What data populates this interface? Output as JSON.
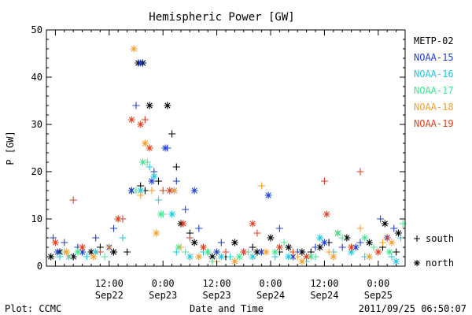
{
  "colors": {
    "METP-02": "#000000",
    "NOAA-15": "#1f3fd0",
    "NOAA-16": "#20c8e0",
    "NOAA-17": "#40e890",
    "NOAA-18": "#f0a030",
    "NOAA-19": "#e04020"
  },
  "chart_data": {
    "type": "scatter",
    "title": "Hemispheric Power [GW]",
    "xlabel": "Date and Time",
    "ylabel": "P [GW]",
    "xlim": [
      "2011-09-21 22:00",
      "2011-09-25 06:00"
    ],
    "ylim": [
      0,
      50
    ],
    "y_ticks": [
      0,
      10,
      20,
      30,
      40,
      50
    ],
    "x_ticks": [
      {
        "x": "2011-09-22 12:00",
        "time": "12:00",
        "date": "Sep22"
      },
      {
        "x": "2011-09-23 00:00",
        "time": "0:00",
        "date": "Sep23"
      },
      {
        "x": "2011-09-23 12:00",
        "time": "12:00",
        "date": "Sep23"
      },
      {
        "x": "2011-09-24 00:00",
        "time": "0:00",
        "date": "Sep24"
      },
      {
        "x": "2011-09-24 12:00",
        "time": "12:00",
        "date": "Sep24"
      },
      {
        "x": "2011-09-25 00:00",
        "time": "0:00",
        "date": "Sep25"
      }
    ],
    "legend": {
      "placement": "right",
      "entries": [
        "METP-02",
        "NOAA-15",
        "NOAA-16",
        "NOAA-17",
        "NOAA-18",
        "NOAA-19"
      ],
      "markers": [
        {
          "symbol": "+",
          "label": "south"
        },
        {
          "symbol": "*",
          "label": "north"
        }
      ]
    },
    "series": [
      {
        "name": "METP-02",
        "south": [
          [
            "2011-09-22 06:00",
            3
          ],
          [
            "2011-09-22 10:00",
            4
          ],
          [
            "2011-09-22 16:00",
            3
          ],
          [
            "2011-09-22 19:00",
            17
          ],
          [
            "2011-09-22 20:00",
            16
          ],
          [
            "2011-09-22 23:00",
            18
          ],
          [
            "2011-09-23 02:00",
            28
          ],
          [
            "2011-09-23 03:00",
            21
          ],
          [
            "2011-09-23 06:00",
            7
          ],
          [
            "2011-09-23 10:00",
            3
          ],
          [
            "2011-09-23 14:00",
            2
          ],
          [
            "2011-09-23 20:00",
            4
          ],
          [
            "2011-09-24 02:00",
            3
          ],
          [
            "2011-09-24 09:00",
            3
          ],
          [
            "2011-09-24 13:00",
            5
          ],
          [
            "2011-09-24 18:00",
            4
          ],
          [
            "2011-09-25 01:00",
            4
          ],
          [
            "2011-09-25 04:00",
            3
          ]
        ],
        "north": [
          [
            "2011-09-21 23:00",
            2
          ],
          [
            "2011-09-22 01:00",
            3
          ],
          [
            "2011-09-22 04:00",
            2
          ],
          [
            "2011-09-22 08:00",
            3
          ],
          [
            "2011-09-22 13:00",
            3
          ],
          [
            "2011-09-22 17:00",
            16
          ],
          [
            "2011-09-22 18:30",
            43
          ],
          [
            "2011-09-22 19:30",
            43
          ],
          [
            "2011-09-22 21:00",
            34
          ],
          [
            "2011-09-23 01:00",
            34
          ],
          [
            "2011-09-23 04:00",
            9
          ],
          [
            "2011-09-23 07:00",
            5
          ],
          [
            "2011-09-23 11:00",
            2
          ],
          [
            "2011-09-23 16:00",
            5
          ],
          [
            "2011-09-23 21:00",
            3
          ],
          [
            "2011-09-24 00:00",
            6
          ],
          [
            "2011-09-24 04:00",
            4
          ],
          [
            "2011-09-24 07:00",
            3
          ],
          [
            "2011-09-24 11:00",
            4
          ],
          [
            "2011-09-24 15:00",
            7
          ],
          [
            "2011-09-24 17:00",
            6
          ],
          [
            "2011-09-24 22:00",
            5
          ],
          [
            "2011-09-25 01:30",
            9
          ],
          [
            "2011-09-25 04:30",
            7
          ]
        ]
      },
      {
        "name": "NOAA-15",
        "south": [
          [
            "2011-09-21 23:30",
            6
          ],
          [
            "2011-09-22 02:00",
            5
          ],
          [
            "2011-09-22 05:00",
            4
          ],
          [
            "2011-09-22 09:00",
            6
          ],
          [
            "2011-09-22 13:00",
            8
          ],
          [
            "2011-09-22 18:00",
            34
          ],
          [
            "2011-09-22 20:00",
            31
          ],
          [
            "2011-09-22 22:00",
            20
          ],
          [
            "2011-09-23 01:00",
            25
          ],
          [
            "2011-09-23 03:00",
            18
          ],
          [
            "2011-09-23 05:00",
            12
          ],
          [
            "2011-09-23 08:00",
            8
          ],
          [
            "2011-09-23 13:00",
            5
          ],
          [
            "2011-09-23 18:00",
            3
          ],
          [
            "2011-09-24 02:00",
            8
          ],
          [
            "2011-09-24 06:00",
            3
          ],
          [
            "2011-09-24 10:00",
            4
          ],
          [
            "2011-09-24 16:00",
            4
          ],
          [
            "2011-09-24 20:00",
            5
          ],
          [
            "2011-09-25 00:30",
            10
          ],
          [
            "2011-09-25 03:30",
            8
          ]
        ],
        "north": [
          [
            "2011-09-22 00:30",
            3
          ],
          [
            "2011-09-22 06:00",
            3
          ],
          [
            "2011-09-22 12:00",
            4
          ],
          [
            "2011-09-22 17:00",
            16
          ],
          [
            "2011-09-22 19:00",
            43
          ],
          [
            "2011-09-22 21:30",
            18
          ],
          [
            "2011-09-23 00:30",
            25
          ],
          [
            "2011-09-23 02:30",
            16
          ],
          [
            "2011-09-23 07:00",
            16
          ],
          [
            "2011-09-23 12:00",
            3
          ],
          [
            "2011-09-23 22:00",
            3
          ],
          [
            "2011-09-23 23:30",
            15
          ],
          [
            "2011-09-24 05:00",
            2
          ],
          [
            "2011-09-24 12:00",
            5
          ],
          [
            "2011-09-24 19:00",
            4
          ],
          [
            "2011-09-25 02:00",
            6
          ]
        ]
      },
      {
        "name": "NOAA-16",
        "south": [
          [
            "2011-09-22 01:00",
            2
          ],
          [
            "2011-09-22 07:00",
            2
          ],
          [
            "2011-09-22 15:00",
            6
          ],
          [
            "2011-09-22 21:00",
            21
          ],
          [
            "2011-09-22 23:00",
            14
          ],
          [
            "2011-09-23 03:00",
            3
          ],
          [
            "2011-09-23 09:00",
            3
          ],
          [
            "2011-09-23 15:00",
            2
          ],
          [
            "2011-09-24 01:00",
            2
          ],
          [
            "2011-09-24 08:00",
            1
          ],
          [
            "2011-09-24 14:00",
            3
          ],
          [
            "2011-09-24 21:00",
            2
          ],
          [
            "2011-09-25 03:00",
            2
          ],
          [
            "2011-09-25 05:00",
            6
          ]
        ],
        "north": [
          [
            "2011-09-22 03:00",
            2
          ],
          [
            "2011-09-22 09:00",
            3
          ],
          [
            "2011-09-22 19:00",
            16
          ],
          [
            "2011-09-22 22:00",
            19
          ],
          [
            "2011-09-23 02:00",
            11
          ],
          [
            "2011-09-23 06:00",
            2
          ],
          [
            "2011-09-23 13:00",
            2
          ],
          [
            "2011-09-23 20:00",
            2
          ],
          [
            "2011-09-24 04:00",
            2
          ],
          [
            "2011-09-24 11:00",
            6
          ],
          [
            "2011-09-24 18:00",
            3
          ],
          [
            "2011-09-25 04:00",
            1
          ]
        ]
      },
      {
        "name": "NOAA-17",
        "south": [
          [
            "2011-09-22 02:00",
            3
          ],
          [
            "2011-09-22 11:00",
            2
          ],
          [
            "2011-09-22 18:00",
            16
          ],
          [
            "2011-09-22 20:30",
            22
          ],
          [
            "2011-09-23 00:00",
            11
          ],
          [
            "2011-09-23 05:00",
            3
          ],
          [
            "2011-09-23 11:00",
            1
          ],
          [
            "2011-09-23 19:00",
            3
          ],
          [
            "2011-09-24 03:00",
            5
          ],
          [
            "2011-09-24 10:00",
            2
          ],
          [
            "2011-09-24 16:00",
            6
          ],
          [
            "2011-09-24 23:00",
            4
          ],
          [
            "2011-09-25 05:30",
            9
          ]
        ],
        "north": [
          [
            "2011-09-22 05:00",
            3
          ],
          [
            "2011-09-22 14:00",
            10
          ],
          [
            "2011-09-22 19:30",
            22
          ],
          [
            "2011-09-22 23:30",
            11
          ],
          [
            "2011-09-23 03:30",
            4
          ],
          [
            "2011-09-23 10:00",
            3
          ],
          [
            "2011-09-23 17:00",
            2
          ],
          [
            "2011-09-24 01:00",
            3
          ],
          [
            "2011-09-24 09:00",
            2
          ],
          [
            "2011-09-24 15:00",
            7
          ],
          [
            "2011-09-24 21:00",
            6
          ],
          [
            "2011-09-25 02:30",
            3
          ]
        ]
      },
      {
        "name": "NOAA-18",
        "south": [
          [
            "2011-09-22 03:00",
            2
          ],
          [
            "2011-09-22 12:00",
            4
          ],
          [
            "2011-09-22 19:00",
            15
          ],
          [
            "2011-09-22 21:30",
            16
          ],
          [
            "2011-09-23 04:00",
            4
          ],
          [
            "2011-09-23 12:00",
            1
          ],
          [
            "2011-09-23 22:00",
            17
          ],
          [
            "2011-09-24 06:00",
            2
          ],
          [
            "2011-09-24 13:00",
            3
          ],
          [
            "2011-09-24 20:00",
            8
          ],
          [
            "2011-09-25 01:00",
            5
          ]
        ],
        "north": [
          [
            "2011-09-22 02:30",
            3
          ],
          [
            "2011-09-22 08:30",
            2
          ],
          [
            "2011-09-22 17:30",
            46
          ],
          [
            "2011-09-22 20:00",
            26
          ],
          [
            "2011-09-22 22:30",
            7
          ],
          [
            "2011-09-23 02:30",
            16
          ],
          [
            "2011-09-23 08:00",
            2
          ],
          [
            "2011-09-23 16:00",
            1
          ],
          [
            "2011-09-23 23:00",
            3
          ],
          [
            "2011-09-24 07:00",
            1
          ],
          [
            "2011-09-24 14:00",
            2
          ],
          [
            "2011-09-24 22:00",
            2
          ],
          [
            "2011-09-25 03:00",
            5
          ]
        ]
      },
      {
        "name": "NOAA-19",
        "south": [
          [
            "2011-09-22 04:00",
            14
          ],
          [
            "2011-09-22 10:00",
            3
          ],
          [
            "2011-09-22 15:00",
            10
          ],
          [
            "2011-09-22 20:00",
            31
          ],
          [
            "2011-09-23 00:00",
            16
          ],
          [
            "2011-09-23 06:00",
            6
          ],
          [
            "2011-09-23 14:00",
            3
          ],
          [
            "2011-09-23 21:00",
            7
          ],
          [
            "2011-09-24 05:00",
            3
          ],
          [
            "2011-09-24 12:00",
            18
          ],
          [
            "2011-09-24 20:00",
            20
          ],
          [
            "2011-09-25 02:00",
            6
          ]
        ],
        "north": [
          [
            "2011-09-22 00:00",
            5
          ],
          [
            "2011-09-22 06:00",
            4
          ],
          [
            "2011-09-22 14:00",
            10
          ],
          [
            "2011-09-22 17:00",
            31
          ],
          [
            "2011-09-22 19:00",
            30
          ],
          [
            "2011-09-22 21:00",
            25
          ],
          [
            "2011-09-23 01:30",
            16
          ],
          [
            "2011-09-23 04:30",
            9
          ],
          [
            "2011-09-23 09:00",
            4
          ],
          [
            "2011-09-23 18:00",
            3
          ],
          [
            "2011-09-23 20:00",
            9
          ],
          [
            "2011-09-24 02:00",
            4
          ],
          [
            "2011-09-24 08:00",
            2
          ],
          [
            "2011-09-24 12:30",
            11
          ],
          [
            "2011-09-24 18:00",
            4
          ],
          [
            "2011-09-25 00:00",
            3
          ]
        ]
      }
    ]
  },
  "footer": {
    "plot_credit": "Plot: CCMC",
    "timestamp": "2011/09/25 06:50:07"
  }
}
